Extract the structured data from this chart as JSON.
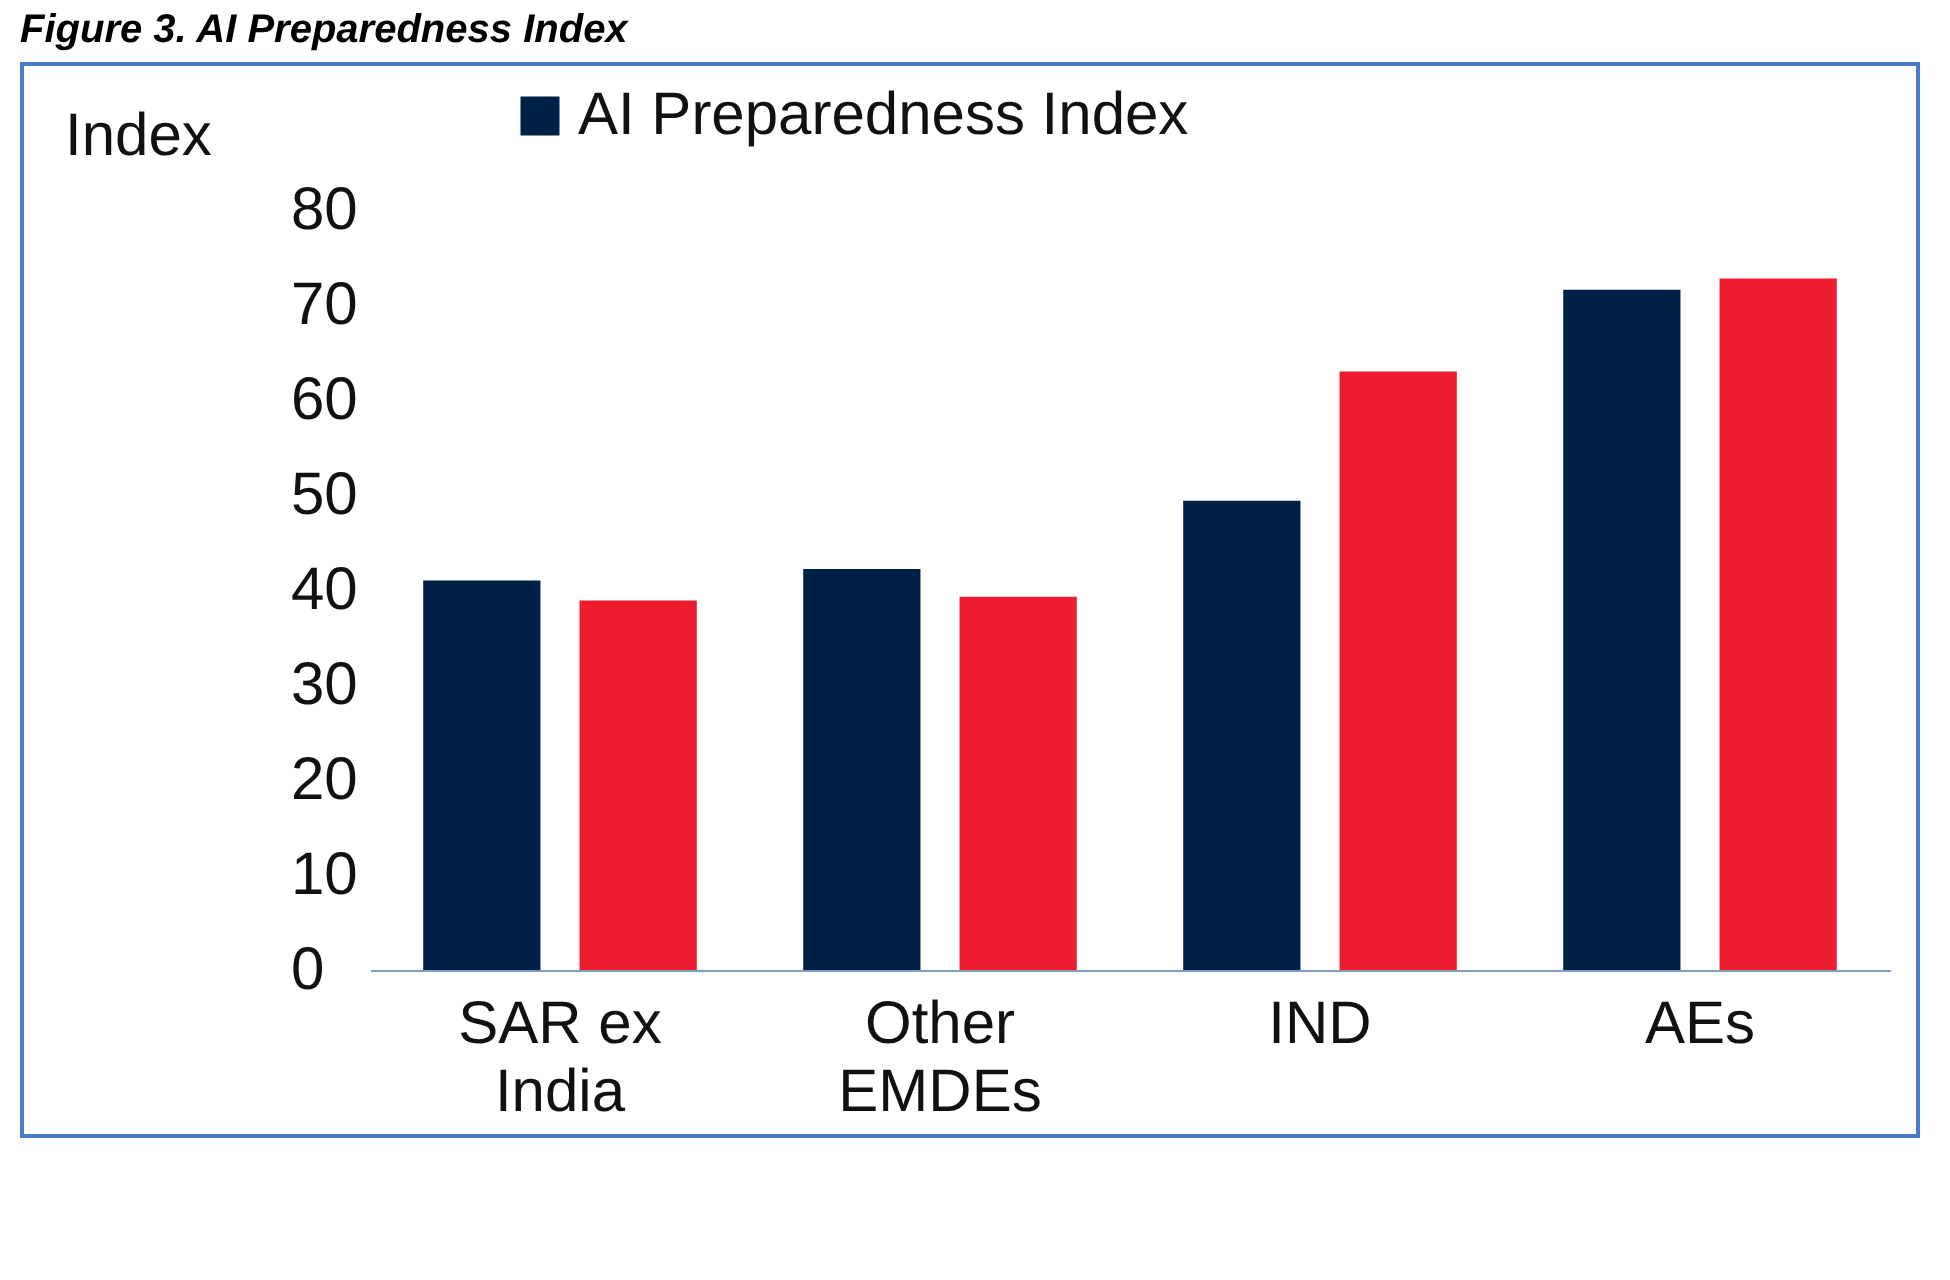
{
  "chart_data": {
    "type": "bar",
    "title": "Figure 3. AI Preparedness Index",
    "ylabel": "Index",
    "categories": [
      "SAR ex India",
      "Other EMDEs",
      "IND",
      "AEs"
    ],
    "series": [
      {
        "name": "AI Preparedness Index",
        "color": "#002147",
        "values": [
          41.0,
          42.2,
          49.4,
          71.6
        ]
      },
      {
        "color": "#ed1c2e",
        "values": [
          38.9,
          39.3,
          63.0,
          72.8
        ]
      }
    ],
    "ylim": [
      0,
      80
    ],
    "yticks": [
      0,
      10,
      20,
      30,
      40,
      50,
      60,
      70,
      80
    ],
    "grid": false,
    "legend": "top"
  }
}
